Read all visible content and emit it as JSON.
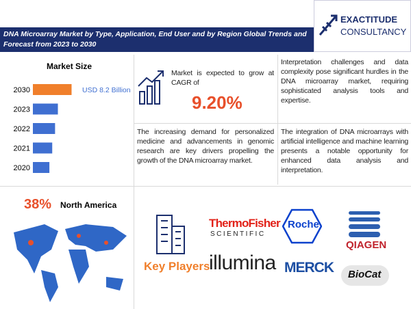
{
  "header": {
    "title": "DNA Microarray Market by Type, Application, End User and by Region Global Trends and Forecast from 2023 to 2030",
    "logo_line1": "EXACTITUDE",
    "logo_line2": "CONSULTANCY"
  },
  "chart_data": {
    "type": "bar",
    "title": "Market Size",
    "categories": [
      "2030",
      "2023",
      "2022",
      "2021",
      "2020"
    ],
    "values": [
      8.2,
      5.3,
      4.7,
      4.1,
      3.5
    ],
    "value_labels": [
      "USD 8.2 Billion",
      null,
      null,
      null,
      null
    ],
    "colors": [
      "#f07f2b",
      "#3f6fd1",
      "#3f6fd1",
      "#3f6fd1",
      "#3f6fd1"
    ],
    "xlim": [
      0,
      9
    ]
  },
  "growth": {
    "text": "Market is expected to grow at CAGR of",
    "cagr": "9.20%"
  },
  "insights": [
    "Interpretation challenges and data complexity pose significant hurdles in the DNA microarray market, requiring sophisticated analysis tools and expertise.",
    "The increasing demand for personalized medicine and advancements in genomic research are key drivers propelling the growth of the DNA microarray market.",
    "The integration of DNA microarrays with artificial intelligence and machine learning presents a notable opportunity for enhanced data analysis and interpretation."
  ],
  "region": {
    "share": "38%",
    "name": "North America"
  },
  "key_players": {
    "title": "Key Players",
    "logos": [
      "ThermoFisher",
      "SCIENTIFIC",
      "Roche",
      "QIAGEN",
      "illumina",
      "MERCK",
      "BioCat"
    ]
  }
}
